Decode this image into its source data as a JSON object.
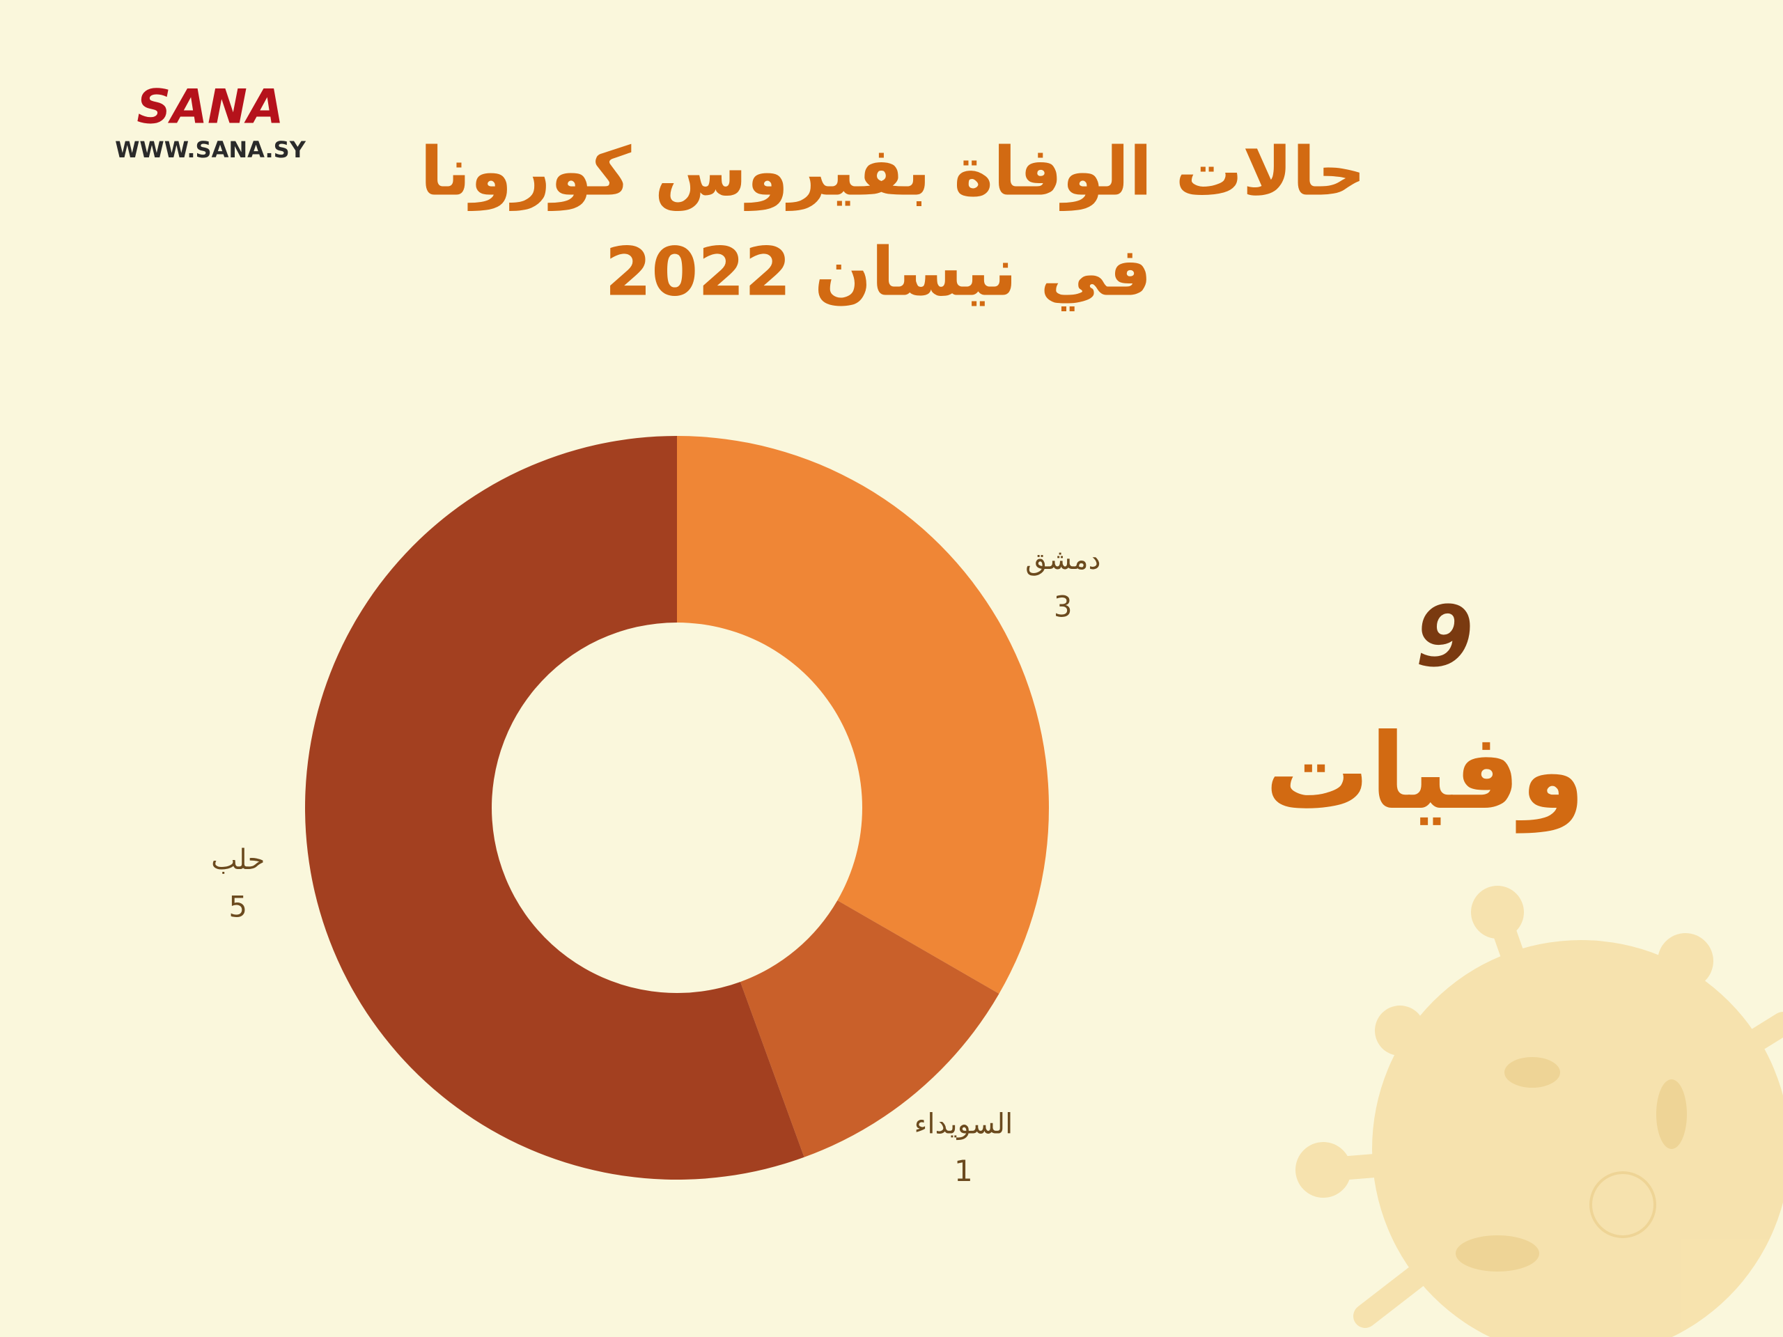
{
  "logo": {
    "name": "SANA",
    "url": "WWW.SANA.SY"
  },
  "chart_data": {
    "type": "donut",
    "title": "حالات الوفاة بفيروس كورونا",
    "subtitle": "في نيسان 2022",
    "categories": [
      "دمشق",
      "السويداء",
      "حلب"
    ],
    "values": [
      3,
      1,
      5
    ],
    "colors": [
      "#ef8636",
      "#c9602a",
      "#a34020"
    ],
    "total": 9,
    "total_label": "وفيات"
  }
}
